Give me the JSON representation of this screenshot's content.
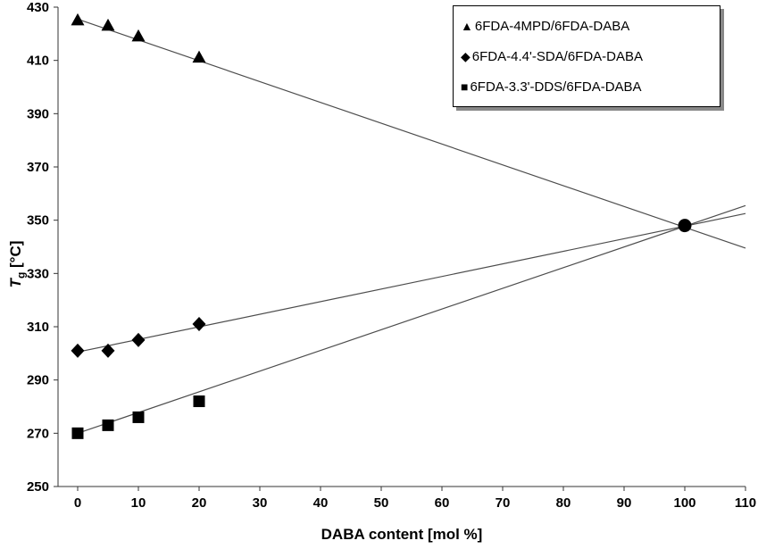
{
  "chart_data": {
    "type": "scatter",
    "title": "",
    "xlabel": "DABA content [mol %]",
    "ylabel": "Tg [°C]",
    "ylabel_parts": {
      "symbol": "T",
      "subscript": "g",
      "units": " [°C]"
    },
    "xlim": [
      0,
      110
    ],
    "ylim": [
      250,
      430
    ],
    "xticks": [
      0,
      10,
      20,
      30,
      40,
      50,
      60,
      70,
      80,
      90,
      100,
      110
    ],
    "yticks": [
      250,
      270,
      290,
      310,
      330,
      350,
      370,
      390,
      410,
      430
    ],
    "grid": false,
    "legend_position": "top-right",
    "series": [
      {
        "name": "6FDA-4MPD/6FDA-DABA",
        "marker": "triangle",
        "x": [
          0,
          5,
          10,
          20
        ],
        "y": [
          425,
          423,
          419,
          411
        ],
        "trendline": {
          "x": [
            0,
            110
          ],
          "y": [
            425.5,
            339.5
          ]
        }
      },
      {
        "name": "6FDA-4.4'-SDA/6FDA-DABA",
        "marker": "diamond",
        "x": [
          0,
          5,
          10,
          20
        ],
        "y": [
          301,
          301,
          305,
          311
        ],
        "trendline": {
          "x": [
            0,
            110
          ],
          "y": [
            300.5,
            352.5
          ]
        }
      },
      {
        "name": "6FDA-3.3'-DDS/6FDA-DABA",
        "marker": "square",
        "x": [
          0,
          5,
          10,
          20
        ],
        "y": [
          270,
          273,
          276,
          282
        ],
        "trendline": {
          "x": [
            0,
            110
          ],
          "y": [
            270,
            355.5
          ]
        }
      }
    ],
    "convergence_point": {
      "x": 100,
      "y": 348,
      "marker": "circle"
    }
  },
  "legend": {
    "items": [
      {
        "glyph": "▲",
        "marker": "triangle",
        "label": "6FDA-4MPD/6FDA-DABA"
      },
      {
        "glyph": "◆",
        "marker": "diamond",
        "label": "6FDA-4.4'-SDA/6FDA-DABA"
      },
      {
        "glyph": "■",
        "marker": "square",
        "label": "6FDA-3.3'-DDS/6FDA-DABA"
      }
    ]
  },
  "colors": {
    "marker": "#000000",
    "trendline": "#4d4d4d",
    "axis": "#333333",
    "text": "#000000",
    "background": "#ffffff",
    "legend_border": "#000000",
    "legend_shadow": "#888888"
  }
}
